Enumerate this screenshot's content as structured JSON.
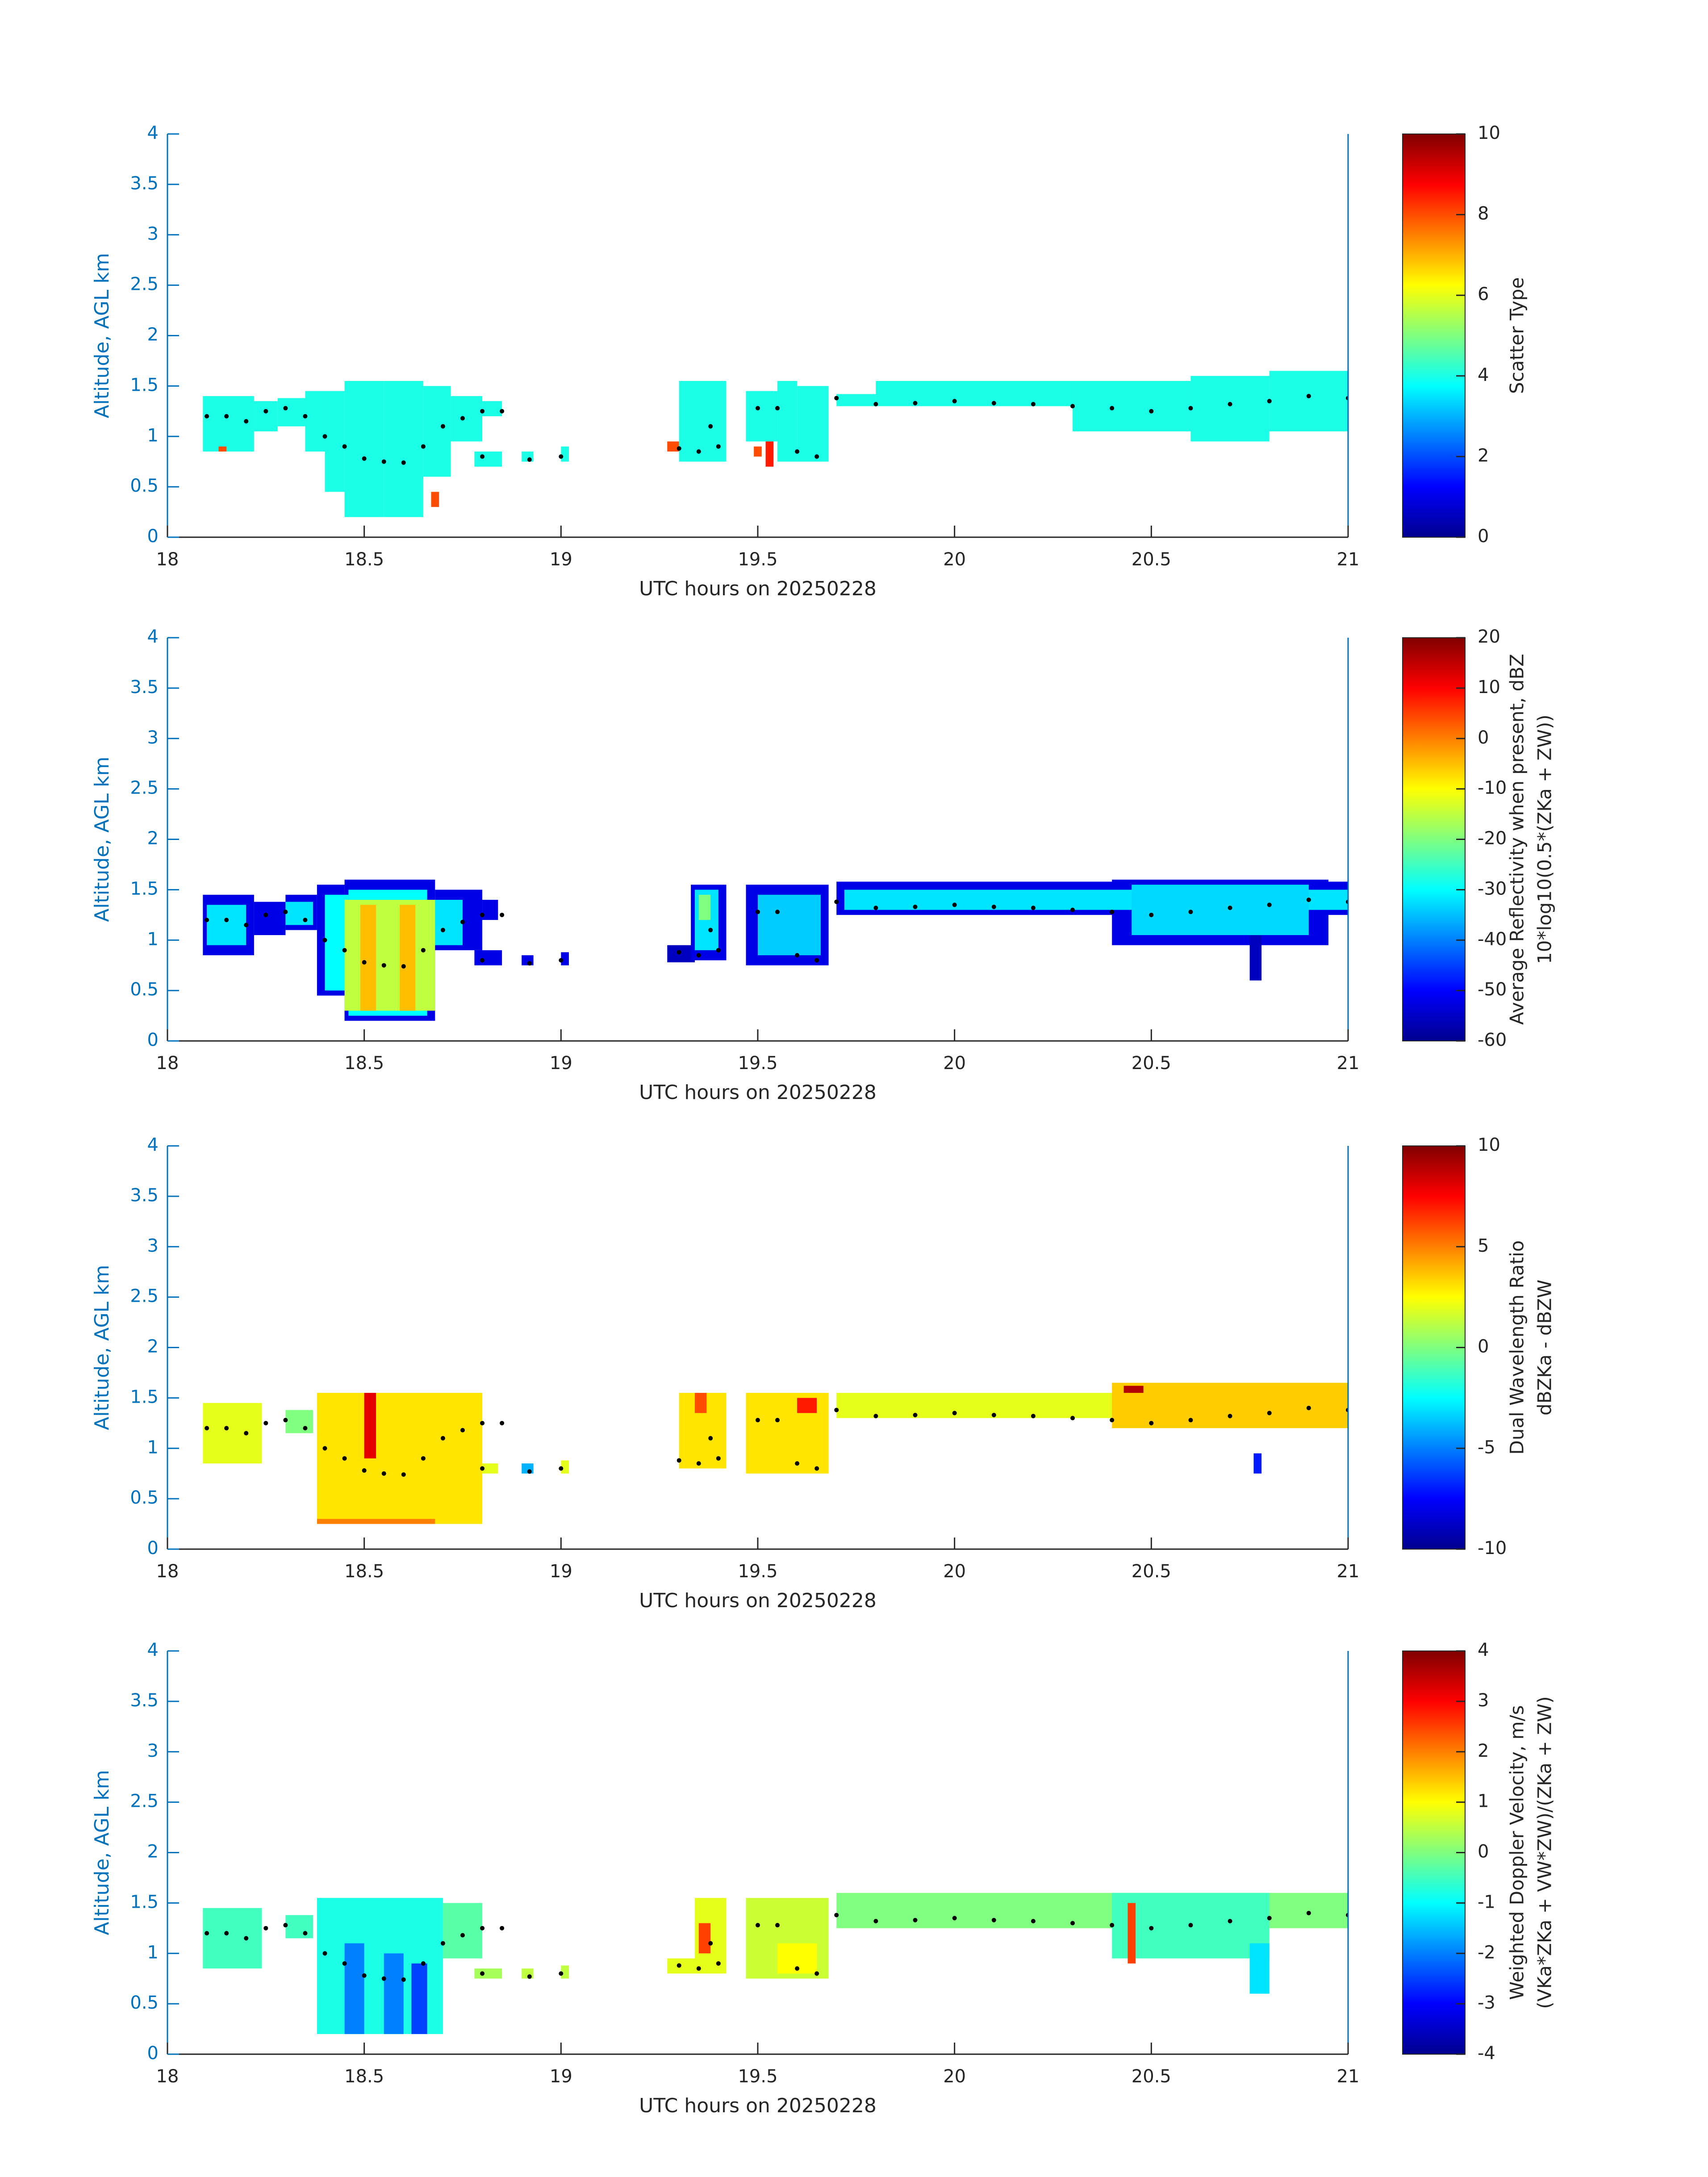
{
  "chart_data": [
    {
      "type": "heatmap",
      "xlabel": "UTC hours on 20250228",
      "ylabel": "Altitude, AGL km",
      "xlim": [
        18,
        21
      ],
      "xticks": [
        18,
        18.5,
        19,
        19.5,
        20,
        20.5,
        21
      ],
      "ylim": [
        0,
        4
      ],
      "yticks": [
        0,
        0.5,
        1,
        1.5,
        2,
        2.5,
        3,
        3.5,
        4
      ],
      "clabel": [
        "Scatter Type"
      ],
      "clim": [
        0,
        10
      ],
      "cticks": [
        0,
        2,
        4,
        6,
        8,
        10
      ],
      "colormap": "jet",
      "cells": [
        [
          18.09,
          18.22,
          0.85,
          1.4,
          4
        ],
        [
          18.22,
          18.28,
          1.05,
          1.35,
          4
        ],
        [
          18.28,
          18.35,
          1.1,
          1.38,
          4
        ],
        [
          18.35,
          18.4,
          0.85,
          1.45,
          4
        ],
        [
          18.4,
          18.45,
          0.45,
          1.45,
          4
        ],
        [
          18.45,
          18.55,
          0.2,
          1.55,
          4
        ],
        [
          18.55,
          18.65,
          0.2,
          1.55,
          4
        ],
        [
          18.65,
          18.72,
          0.6,
          1.5,
          4
        ],
        [
          18.72,
          18.8,
          0.95,
          1.4,
          4
        ],
        [
          18.78,
          18.85,
          0.7,
          0.85,
          4
        ],
        [
          18.8,
          18.85,
          1.2,
          1.35,
          4
        ],
        [
          18.9,
          18.93,
          0.75,
          0.85,
          4
        ],
        [
          19.0,
          19.02,
          0.75,
          0.9,
          4
        ],
        [
          19.27,
          19.3,
          0.85,
          0.95,
          8
        ],
        [
          19.3,
          19.42,
          0.75,
          1.55,
          4
        ],
        [
          19.47,
          19.55,
          0.95,
          1.45,
          4
        ],
        [
          19.55,
          19.6,
          0.75,
          1.55,
          4
        ],
        [
          19.6,
          19.68,
          0.75,
          1.5,
          4
        ],
        [
          19.7,
          19.8,
          1.3,
          1.42,
          4
        ],
        [
          19.8,
          20.3,
          1.3,
          1.55,
          4
        ],
        [
          20.3,
          20.6,
          1.05,
          1.55,
          4
        ],
        [
          20.6,
          20.8,
          0.95,
          1.6,
          4
        ],
        [
          20.8,
          21.0,
          1.05,
          1.65,
          4
        ],
        [
          18.13,
          18.15,
          0.85,
          0.9,
          8
        ],
        [
          18.67,
          18.69,
          0.3,
          0.45,
          8
        ],
        [
          19.49,
          19.51,
          0.8,
          0.9,
          8
        ],
        [
          19.52,
          19.54,
          0.7,
          0.95,
          8.5
        ]
      ],
      "points": {
        "x": [
          18.1,
          18.15,
          18.2,
          18.25,
          18.3,
          18.35,
          18.4,
          18.45,
          18.5,
          18.55,
          18.6,
          18.65,
          18.7,
          18.75,
          18.8,
          18.85,
          18.8,
          18.92,
          19.0,
          19.3,
          19.35,
          19.38,
          19.4,
          19.5,
          19.55,
          19.6,
          19.65,
          19.7,
          19.8,
          19.9,
          20.0,
          20.1,
          20.2,
          20.3,
          20.4,
          20.5,
          20.6,
          20.7,
          20.8,
          20.9,
          21.0
        ],
        "y": [
          1.2,
          1.2,
          1.15,
          1.25,
          1.28,
          1.2,
          1.0,
          0.9,
          0.78,
          0.75,
          0.74,
          0.9,
          1.1,
          1.18,
          1.25,
          1.25,
          0.8,
          0.77,
          0.8,
          0.88,
          0.85,
          1.1,
          0.9,
          1.28,
          1.28,
          0.85,
          0.8,
          1.38,
          1.32,
          1.33,
          1.35,
          1.33,
          1.32,
          1.3,
          1.28,
          1.25,
          1.28,
          1.32,
          1.35,
          1.4,
          1.38
        ]
      }
    },
    {
      "type": "heatmap",
      "xlabel": "UTC hours on 20250228",
      "ylabel": "Altitude, AGL km",
      "xlim": [
        18,
        21
      ],
      "xticks": [
        18,
        18.5,
        19,
        19.5,
        20,
        20.5,
        21
      ],
      "ylim": [
        0,
        4
      ],
      "yticks": [
        0,
        0.5,
        1,
        1.5,
        2,
        2.5,
        3,
        3.5,
        4
      ],
      "clabel": [
        "Average Reflectivity when present, dBZ",
        "10*log10(0.5*(ZKa + ZW))"
      ],
      "clim": [
        -60,
        20
      ],
      "cticks": [
        -60,
        -50,
        -40,
        -30,
        -20,
        -10,
        0,
        10,
        20
      ],
      "colormap": "jet",
      "cells": [
        [
          18.09,
          18.22,
          0.85,
          1.45,
          -52
        ],
        [
          18.22,
          18.3,
          1.05,
          1.38,
          -52
        ],
        [
          18.3,
          18.38,
          1.1,
          1.45,
          -52
        ],
        [
          18.38,
          18.45,
          0.45,
          1.55,
          -52
        ],
        [
          18.45,
          18.68,
          0.2,
          1.6,
          -52
        ],
        [
          18.68,
          18.8,
          0.9,
          1.5,
          -52
        ],
        [
          18.8,
          18.84,
          1.2,
          1.4,
          -52
        ],
        [
          18.78,
          18.85,
          0.75,
          0.9,
          -52
        ],
        [
          18.9,
          18.93,
          0.75,
          0.85,
          -52
        ],
        [
          19.0,
          19.02,
          0.75,
          0.88,
          -52
        ],
        [
          19.27,
          19.34,
          0.78,
          0.95,
          -55
        ],
        [
          19.33,
          19.42,
          0.8,
          1.55,
          -52
        ],
        [
          19.47,
          19.68,
          0.75,
          1.55,
          -52
        ],
        [
          19.7,
          21.0,
          1.25,
          1.58,
          -52
        ],
        [
          20.4,
          20.95,
          0.95,
          1.6,
          -52
        ],
        [
          20.75,
          20.78,
          0.6,
          1.2,
          -55
        ],
        [
          18.1,
          18.2,
          0.95,
          1.35,
          -32
        ],
        [
          18.3,
          18.37,
          1.15,
          1.38,
          -32
        ],
        [
          18.4,
          18.46,
          0.5,
          1.45,
          -30
        ],
        [
          18.46,
          18.66,
          0.25,
          1.5,
          -30
        ],
        [
          18.66,
          18.75,
          0.95,
          1.4,
          -32
        ],
        [
          19.34,
          19.4,
          0.9,
          1.5,
          -32
        ],
        [
          19.5,
          19.66,
          0.85,
          1.45,
          -34
        ],
        [
          19.72,
          21.0,
          1.3,
          1.5,
          -32
        ],
        [
          20.45,
          20.9,
          1.05,
          1.55,
          -33
        ],
        [
          18.45,
          18.68,
          0.3,
          1.4,
          -15
        ],
        [
          19.35,
          19.38,
          1.2,
          1.45,
          -20
        ],
        [
          18.49,
          18.53,
          0.3,
          1.35,
          -5
        ],
        [
          18.59,
          18.63,
          0.3,
          1.35,
          -5
        ]
      ],
      "points": {
        "x": [
          18.1,
          18.15,
          18.2,
          18.25,
          18.3,
          18.35,
          18.4,
          18.45,
          18.5,
          18.55,
          18.6,
          18.65,
          18.7,
          18.75,
          18.8,
          18.85,
          18.8,
          18.92,
          19.0,
          19.3,
          19.35,
          19.38,
          19.4,
          19.5,
          19.55,
          19.6,
          19.65,
          19.7,
          19.8,
          19.9,
          20.0,
          20.1,
          20.2,
          20.3,
          20.4,
          20.5,
          20.6,
          20.7,
          20.8,
          20.9,
          21.0
        ],
        "y": [
          1.2,
          1.2,
          1.15,
          1.25,
          1.28,
          1.2,
          1.0,
          0.9,
          0.78,
          0.75,
          0.74,
          0.9,
          1.1,
          1.18,
          1.25,
          1.25,
          0.8,
          0.77,
          0.8,
          0.88,
          0.85,
          1.1,
          0.9,
          1.28,
          1.28,
          0.85,
          0.8,
          1.38,
          1.32,
          1.33,
          1.35,
          1.33,
          1.32,
          1.3,
          1.28,
          1.25,
          1.28,
          1.32,
          1.35,
          1.4,
          1.38
        ]
      }
    },
    {
      "type": "heatmap",
      "xlabel": "UTC hours on 20250228",
      "ylabel": "Altitude, AGL km",
      "xlim": [
        18,
        21
      ],
      "xticks": [
        18,
        18.5,
        19,
        19.5,
        20,
        20.5,
        21
      ],
      "ylim": [
        0,
        4
      ],
      "yticks": [
        0,
        0.5,
        1,
        1.5,
        2,
        2.5,
        3,
        3.5,
        4
      ],
      "clabel": [
        "Dual Wavelength Ratio",
        "dBZKa - dBZW"
      ],
      "clim": [
        -10,
        10
      ],
      "cticks": [
        -10,
        -5,
        0,
        5,
        10
      ],
      "colormap": "jet",
      "cells": [
        [
          18.09,
          18.24,
          0.85,
          1.45,
          2
        ],
        [
          18.3,
          18.37,
          1.15,
          1.38,
          0
        ],
        [
          18.38,
          18.8,
          0.25,
          1.55,
          3
        ],
        [
          18.8,
          18.84,
          0.75,
          0.85,
          2
        ],
        [
          18.9,
          18.93,
          0.75,
          0.85,
          -4
        ],
        [
          19.0,
          19.02,
          0.75,
          0.88,
          2
        ],
        [
          19.3,
          19.42,
          0.8,
          1.55,
          3
        ],
        [
          19.47,
          19.68,
          0.75,
          1.55,
          3
        ],
        [
          19.7,
          21.0,
          1.3,
          1.55,
          2
        ],
        [
          20.4,
          21.0,
          1.2,
          1.65,
          3.5
        ],
        [
          18.5,
          18.53,
          0.9,
          1.55,
          8
        ],
        [
          18.38,
          18.68,
          0.25,
          0.3,
          5
        ],
        [
          19.6,
          19.65,
          1.35,
          1.5,
          7
        ],
        [
          19.34,
          19.37,
          1.35,
          1.55,
          6
        ],
        [
          20.43,
          20.48,
          1.55,
          1.62,
          9
        ],
        [
          20.76,
          20.78,
          0.75,
          0.95,
          -7
        ]
      ],
      "points": {
        "x": [
          18.1,
          18.15,
          18.2,
          18.25,
          18.3,
          18.35,
          18.4,
          18.45,
          18.5,
          18.55,
          18.6,
          18.65,
          18.7,
          18.75,
          18.8,
          18.85,
          18.8,
          18.92,
          19.0,
          19.3,
          19.35,
          19.38,
          19.4,
          19.5,
          19.55,
          19.6,
          19.65,
          19.7,
          19.8,
          19.9,
          20.0,
          20.1,
          20.2,
          20.3,
          20.4,
          20.5,
          20.6,
          20.7,
          20.8,
          20.9,
          21.0
        ],
        "y": [
          1.2,
          1.2,
          1.15,
          1.25,
          1.28,
          1.2,
          1.0,
          0.9,
          0.78,
          0.75,
          0.74,
          0.9,
          1.1,
          1.18,
          1.25,
          1.25,
          0.8,
          0.77,
          0.8,
          0.88,
          0.85,
          1.1,
          0.9,
          1.28,
          1.28,
          0.85,
          0.8,
          1.38,
          1.32,
          1.33,
          1.35,
          1.33,
          1.32,
          1.3,
          1.28,
          1.25,
          1.28,
          1.32,
          1.35,
          1.4,
          1.38
        ]
      }
    },
    {
      "type": "heatmap",
      "xlabel": "UTC hours on 20250228",
      "ylabel": "Altitude, AGL km",
      "xlim": [
        18,
        21
      ],
      "xticks": [
        18,
        18.5,
        19,
        19.5,
        20,
        20.5,
        21
      ],
      "ylim": [
        0,
        4
      ],
      "yticks": [
        0,
        0.5,
        1,
        1.5,
        2,
        2.5,
        3,
        3.5,
        4
      ],
      "clabel": [
        "Weighted Doppler Velocity, m/s",
        "(VKa*ZKa + VW*ZW)/(ZKa + ZW)"
      ],
      "clim": [
        -4,
        4
      ],
      "cticks": [
        -4,
        -3,
        -2,
        -1,
        0,
        1,
        2,
        3,
        4
      ],
      "colormap": "jet",
      "cells": [
        [
          18.09,
          18.24,
          0.85,
          1.45,
          -0.5
        ],
        [
          18.3,
          18.37,
          1.15,
          1.38,
          -0.5
        ],
        [
          18.38,
          18.7,
          0.2,
          1.55,
          -0.8
        ],
        [
          18.7,
          18.8,
          0.95,
          1.5,
          -0.3
        ],
        [
          18.78,
          18.85,
          0.75,
          0.85,
          0.3
        ],
        [
          18.9,
          18.93,
          0.75,
          0.85,
          0.5
        ],
        [
          19.0,
          19.02,
          0.75,
          0.88,
          0.5
        ],
        [
          19.27,
          19.34,
          0.8,
          0.95,
          0.8
        ],
        [
          19.34,
          19.42,
          0.8,
          1.55,
          0.8
        ],
        [
          19.47,
          19.68,
          0.75,
          1.55,
          0.6
        ],
        [
          19.7,
          21.0,
          1.25,
          1.6,
          0
        ],
        [
          20.4,
          20.8,
          0.95,
          1.6,
          -0.5
        ],
        [
          20.75,
          20.8,
          0.6,
          1.1,
          -1.2
        ],
        [
          18.45,
          18.5,
          0.2,
          1.1,
          -2
        ],
        [
          18.55,
          18.6,
          0.2,
          1.0,
          -2
        ],
        [
          18.62,
          18.66,
          0.2,
          0.9,
          -2.5
        ],
        [
          19.35,
          19.38,
          1.0,
          1.3,
          2.5
        ],
        [
          20.44,
          20.46,
          0.9,
          1.5,
          2.5
        ],
        [
          19.55,
          19.65,
          0.8,
          1.1,
          1
        ]
      ],
      "points": {
        "x": [
          18.1,
          18.15,
          18.2,
          18.25,
          18.3,
          18.35,
          18.4,
          18.45,
          18.5,
          18.55,
          18.6,
          18.65,
          18.7,
          18.75,
          18.8,
          18.85,
          18.8,
          18.92,
          19.0,
          19.3,
          19.35,
          19.38,
          19.4,
          19.5,
          19.55,
          19.6,
          19.65,
          19.7,
          19.8,
          19.9,
          20.0,
          20.1,
          20.2,
          20.3,
          20.4,
          20.5,
          20.6,
          20.7,
          20.8,
          20.9,
          21.0
        ],
        "y": [
          1.2,
          1.2,
          1.15,
          1.25,
          1.28,
          1.2,
          1.0,
          0.9,
          0.78,
          0.75,
          0.74,
          0.9,
          1.1,
          1.18,
          1.25,
          1.25,
          0.8,
          0.77,
          0.8,
          0.88,
          0.85,
          1.1,
          0.9,
          1.28,
          1.28,
          0.85,
          0.8,
          1.38,
          1.32,
          1.33,
          1.35,
          1.33,
          1.32,
          1.3,
          1.28,
          1.25,
          1.28,
          1.32,
          1.35,
          1.4,
          1.38
        ]
      }
    }
  ]
}
